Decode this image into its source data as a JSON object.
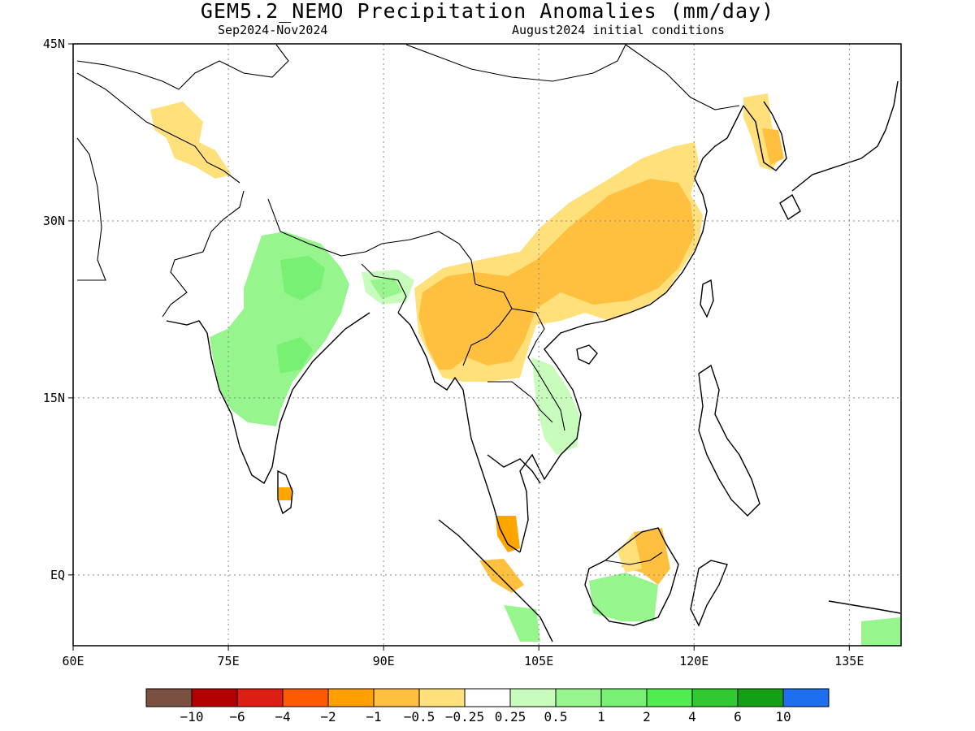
{
  "title": "GEM5.2_NEMO Precipitation Anomalies (mm/day)",
  "subtitle_left": "Sep2024-Nov2024",
  "subtitle_right": "August2024 initial conditions",
  "map": {
    "lon_range": [
      60,
      140
    ],
    "lat_range": [
      -6,
      45
    ],
    "lon_ticks": [
      {
        "value": 60,
        "label": "60E"
      },
      {
        "value": 75,
        "label": "75E"
      },
      {
        "value": 90,
        "label": "90E"
      },
      {
        "value": 105,
        "label": "105E"
      },
      {
        "value": 120,
        "label": "120E"
      },
      {
        "value": 135,
        "label": "135E"
      }
    ],
    "lat_ticks": [
      {
        "value": 45,
        "label": "45N"
      },
      {
        "value": 30,
        "label": "30N"
      },
      {
        "value": 15,
        "label": "15N"
      },
      {
        "value": 0,
        "label": "EQ"
      }
    ],
    "grid": "dotted",
    "regions": [
      {
        "name": "India",
        "class": "0.5-1",
        "color": "#96f58c"
      },
      {
        "name": "India core",
        "class": "1-2",
        "color": "#78f073"
      },
      {
        "name": "South China",
        "class": "-1--0.5",
        "color": "#ffc040"
      },
      {
        "name": "Myanmar",
        "class": "-1--0.5",
        "color": "#ffc040"
      },
      {
        "name": "North China margin",
        "class": "-0.5--0.25",
        "color": "#ffe07a"
      },
      {
        "name": "Borneo",
        "class": "0.5-1",
        "color": "#96f58c"
      },
      {
        "name": "Malay Peninsula",
        "class": "-2--1",
        "color": "#ffa500"
      }
    ]
  },
  "colorbar": {
    "colors": [
      "#7a5040",
      "#b40000",
      "#dc1e14",
      "#ff5a00",
      "#ffa000",
      "#ffc040",
      "#ffe07a",
      "#ffffff",
      "#c8fcbc",
      "#96f58c",
      "#78f073",
      "#50ec50",
      "#32c832",
      "#14a014",
      "#1e6ef0"
    ],
    "labels": [
      "-10",
      "-6",
      "-4",
      "-2",
      "-1",
      "-0.5",
      "-0.25",
      "0.25",
      "0.5",
      "1",
      "2",
      "4",
      "6",
      "10"
    ]
  }
}
